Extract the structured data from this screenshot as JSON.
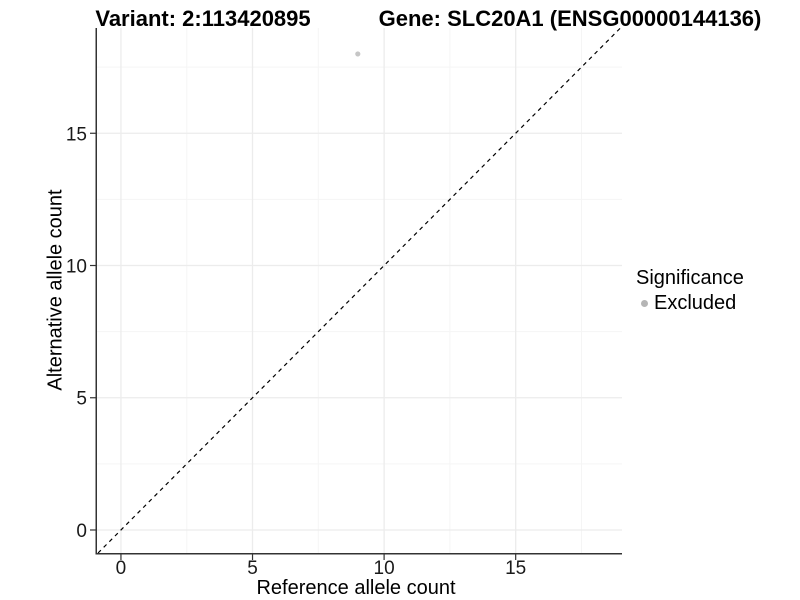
{
  "header": {
    "variant_title": "Variant: 2:113420895",
    "gene_title": "Gene: SLC20A1 (ENSG00000144136)"
  },
  "chart_data": {
    "type": "scatter",
    "title": "",
    "xlabel": "Reference allele count",
    "ylabel": "Alternative allele count",
    "xlim": [
      -0.91,
      19.04
    ],
    "ylim": [
      -0.87,
      18.98
    ],
    "x_ticks": [
      0,
      5,
      10,
      15
    ],
    "y_ticks": [
      0,
      5,
      10,
      15
    ],
    "x_minor_ticks": [
      2.5,
      7.5,
      12.5,
      17.5
    ],
    "y_minor_ticks": [
      2.5,
      7.5,
      12.5,
      17.5
    ],
    "grid": true,
    "series": [
      {
        "name": "Excluded",
        "color": "#c6c6c6",
        "points": [
          {
            "x": 9,
            "y": 18
          }
        ]
      }
    ],
    "identity_line": {
      "slope": 1,
      "intercept": 0,
      "style": "dashed",
      "color": "#000000"
    },
    "legend_position": "right"
  },
  "legend": {
    "title": "Significance",
    "items": [
      {
        "label": "Excluded",
        "marker_color": "#b5b5b5"
      }
    ]
  },
  "colors": {
    "background": "#ffffff",
    "axis_line": "#333333",
    "tick_mark": "#333333",
    "tick_label": "#1a1a1a",
    "major_grid": "#ececec",
    "minor_grid": "#f5f5f5",
    "title_text": "#000000"
  }
}
